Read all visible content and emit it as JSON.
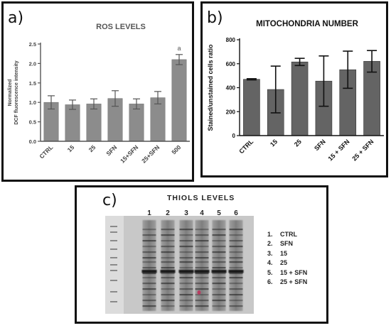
{
  "panels": {
    "a_letter": "a)",
    "b_letter": "b)",
    "c_letter": "c)"
  },
  "chart_data": [
    {
      "type": "bar",
      "title": "ROS LEVELS",
      "ylabel": "Normalized DCF fluorescence intensity",
      "ylabel_lines": [
        "Normalized",
        "DCF fluorescence intensity"
      ],
      "categories": [
        "CTRL",
        "15",
        "25",
        "SFN",
        "15+SFN",
        "25+SFN",
        "500"
      ],
      "values": [
        1.0,
        0.94,
        0.96,
        1.1,
        0.96,
        1.12,
        2.1
      ],
      "errors": [
        0.17,
        0.12,
        0.13,
        0.2,
        0.13,
        0.16,
        0.13
      ],
      "annotations": [
        "",
        "",
        "",
        "",
        "",
        "",
        "a"
      ],
      "ylim": [
        0,
        2.5
      ],
      "yticks": [
        "0.0",
        "0.5",
        "1.0",
        "1.5",
        "2.0",
        "2.5"
      ],
      "grid": false,
      "colors": {
        "bar": "#8c8c8c",
        "axis": "#555555",
        "text": "#444444"
      }
    },
    {
      "type": "bar",
      "title": "MITOCHONDRIA  NUMBER",
      "ylabel": "Stained/unstained cells ratio",
      "categories": [
        "CTRL",
        "15",
        "25",
        "SFN",
        "15 + SFN",
        "25 + SFN"
      ],
      "values": [
        470,
        385,
        615,
        455,
        550,
        620
      ],
      "errors": [
        5,
        195,
        30,
        210,
        155,
        90
      ],
      "ylim": [
        0,
        800
      ],
      "yticks": [
        "0",
        "200",
        "400",
        "600",
        "800"
      ],
      "grid": false,
      "colors": {
        "bar": "#646464",
        "axis": "#111111",
        "text": "#111111"
      }
    }
  ],
  "thiols": {
    "title": "THIOLS LEVELS",
    "lane_numbers": [
      "1",
      "2",
      "3",
      "4",
      "5",
      "6"
    ],
    "legend": [
      {
        "num": "1.",
        "label": "CTRL"
      },
      {
        "num": "2.",
        "label": "SFN"
      },
      {
        "num": "3.",
        "label": "15"
      },
      {
        "num": "4.",
        "label": "25"
      },
      {
        "num": "5.",
        "label": "15 + SFN"
      },
      {
        "num": "6.",
        "label": "25 + SFN"
      }
    ]
  }
}
